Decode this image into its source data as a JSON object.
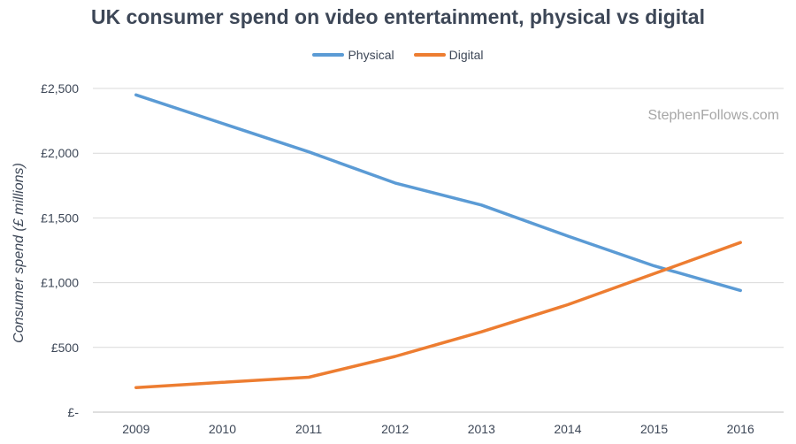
{
  "chart_data": {
    "type": "line",
    "title": "UK consumer spend on video entertainment, physical vs digital",
    "xlabel": "",
    "ylabel": "Consumer spend (£ millions)",
    "categories": [
      "2009",
      "2010",
      "2011",
      "2012",
      "2013",
      "2014",
      "2015",
      "2016"
    ],
    "series": [
      {
        "name": "Physical",
        "color": "#5b9bd5",
        "values": [
          2450,
          2230,
          2010,
          1770,
          1600,
          1360,
          1130,
          940
        ]
      },
      {
        "name": "Digital",
        "color": "#ed7d31",
        "values": [
          190,
          230,
          270,
          430,
          620,
          830,
          1070,
          1310
        ]
      }
    ],
    "ylim": [
      0,
      2500
    ],
    "yticks": [
      {
        "value": 0,
        "label": "£-"
      },
      {
        "value": 500,
        "label": "£500"
      },
      {
        "value": 1000,
        "label": "£1,000"
      },
      {
        "value": 1500,
        "label": "£1,500"
      },
      {
        "value": 2000,
        "label": "£2,000"
      },
      {
        "value": 2500,
        "label": "£2,500"
      }
    ],
    "grid": true,
    "legend_position": "top-center",
    "watermark": "StephenFollows.com"
  }
}
